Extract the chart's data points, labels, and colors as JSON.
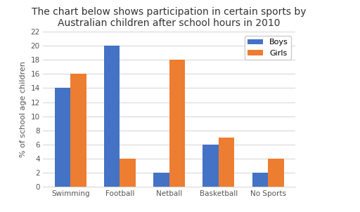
{
  "title": "The chart below shows participation in certain sports by\nAustralian children after school hours in 2010",
  "categories": [
    "Swimming",
    "Football",
    "Netball",
    "Basketball",
    "No Sports"
  ],
  "boys_values": [
    14,
    20,
    2,
    6,
    2
  ],
  "girls_values": [
    16,
    4,
    18,
    7,
    4
  ],
  "boys_color": "#4472c4",
  "girls_color": "#ed7d31",
  "ylabel": "% of school age children",
  "ylim": [
    0,
    22
  ],
  "yticks": [
    0,
    2,
    4,
    6,
    8,
    10,
    12,
    14,
    16,
    18,
    20,
    22
  ],
  "legend_labels": [
    "Boys",
    "Girls"
  ],
  "bar_width": 0.32,
  "title_fontsize": 10,
  "axis_fontsize": 8,
  "tick_fontsize": 7.5,
  "background_color": "#ffffff",
  "grid_color": "#d9d9d9"
}
